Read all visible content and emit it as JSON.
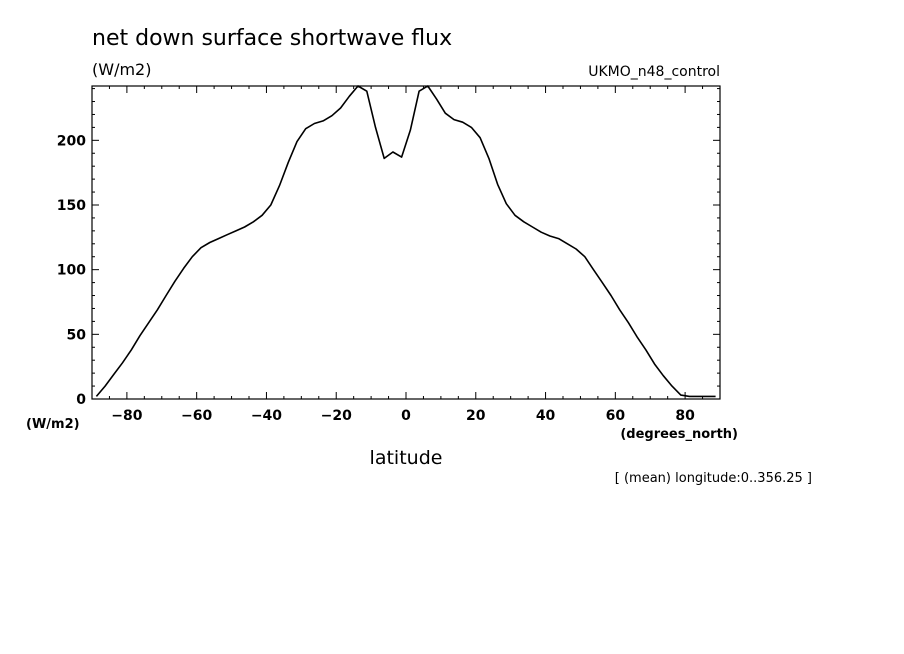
{
  "chart_data": {
    "type": "line",
    "title": "net down surface shortwave flux",
    "units": "(W/m2)",
    "run_label": "UKMO_n48_control",
    "xlabel": "latitude",
    "x_units": "(degrees_north)",
    "y_units": "(W/m2)",
    "footnote": "[ (mean) longitude:0..356.25 ]",
    "xlim": [
      -90,
      90
    ],
    "ylim": [
      0,
      242
    ],
    "xticks": [
      -80,
      -60,
      -40,
      -20,
      0,
      20,
      40,
      60,
      80
    ],
    "yticks": [
      0,
      50,
      100,
      150,
      200
    ],
    "grid": false,
    "x": [
      -88.75,
      -86.25,
      -83.75,
      -81.25,
      -78.75,
      -76.25,
      -73.75,
      -71.25,
      -68.75,
      -66.25,
      -63.75,
      -61.25,
      -58.75,
      -56.25,
      -53.75,
      -51.25,
      -48.75,
      -46.25,
      -43.75,
      -41.25,
      -38.75,
      -36.25,
      -33.75,
      -31.25,
      -28.75,
      -26.25,
      -23.75,
      -21.25,
      -18.75,
      -16.25,
      -13.75,
      -11.25,
      -8.75,
      -6.25,
      -3.75,
      -1.25,
      1.25,
      3.75,
      6.25,
      8.75,
      11.25,
      13.75,
      16.25,
      18.75,
      21.25,
      23.75,
      26.25,
      28.75,
      31.25,
      33.75,
      36.25,
      38.75,
      41.25,
      43.75,
      46.25,
      48.75,
      51.25,
      53.75,
      56.25,
      58.75,
      61.25,
      63.75,
      66.25,
      68.75,
      71.25,
      73.75,
      76.25,
      78.75,
      81.25,
      83.75,
      86.25,
      88.75
    ],
    "values": [
      2,
      10,
      19,
      28,
      38,
      49,
      59,
      69,
      80,
      91,
      101,
      110,
      117,
      121,
      124,
      127,
      130,
      133,
      137,
      142,
      150,
      165,
      183,
      199,
      209,
      213,
      215,
      219,
      225,
      234,
      242,
      238,
      210,
      186,
      191,
      187,
      208,
      238,
      242,
      232,
      221,
      216,
      214,
      210,
      202,
      186,
      166,
      151,
      142,
      137,
      133,
      129,
      126,
      124,
      120,
      116,
      110,
      100,
      90,
      80,
      69,
      59,
      48,
      38,
      27,
      18,
      10,
      3,
      2,
      2,
      2,
      2
    ]
  }
}
